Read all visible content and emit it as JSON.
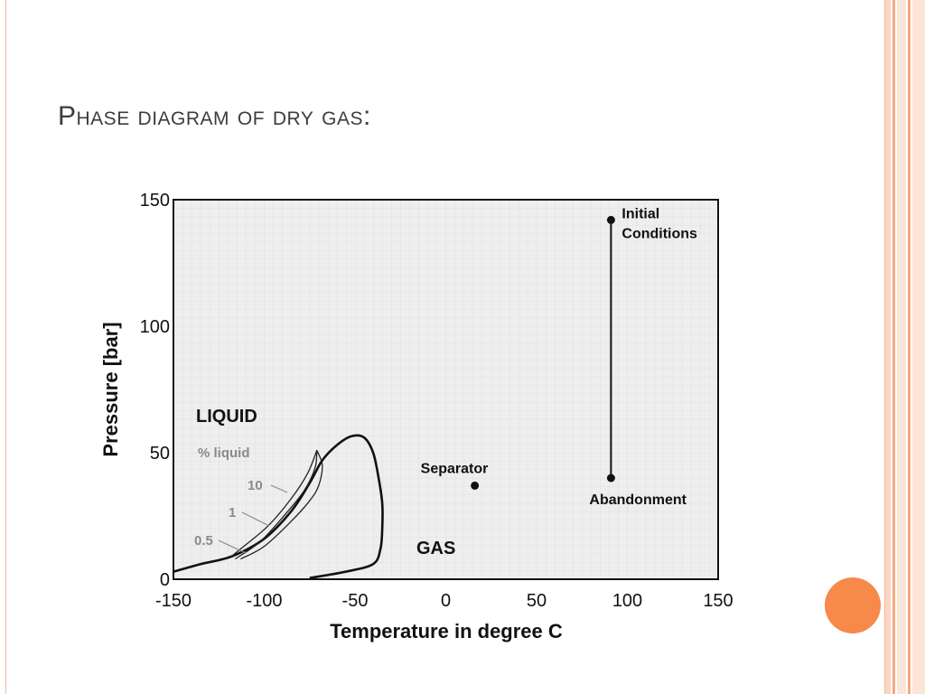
{
  "slide": {
    "title": "Phase diagram of dry gas:",
    "accent_color": "#f7894a"
  },
  "chart_data": {
    "type": "line",
    "title": "",
    "xlabel": "Temperature in degree C",
    "ylabel": "Pressure [bar]",
    "xlim": [
      -150,
      150
    ],
    "ylim": [
      0,
      150
    ],
    "xticks": [
      "-150",
      "-100",
      "-50",
      "0",
      "50",
      "100",
      "150"
    ],
    "yticks": [
      "0",
      "50",
      "100",
      "150"
    ],
    "grid": true,
    "region_labels": {
      "liquid": "LIQUID",
      "gas": "GAS",
      "percent_liquid": "% liquid"
    },
    "quality_line_labels": [
      "10",
      "1",
      "0.5"
    ],
    "phase_envelope": {
      "x": [
        -150,
        -135,
        -118,
        -100,
        -85,
        -75,
        -68,
        -60,
        -52,
        -45,
        -40,
        -37,
        -35,
        -35,
        -36,
        -40,
        -55,
        -75
      ],
      "y": [
        3,
        6,
        9,
        16,
        27,
        38,
        47,
        53,
        56.5,
        56,
        50,
        40,
        30,
        20,
        12,
        6,
        3,
        0.5
      ]
    },
    "quality_lines": [
      {
        "x": [
          -71,
          -68,
          -70,
          -75,
          -85,
          -100,
          -113
        ],
        "y": [
          51,
          45,
          37,
          31,
          23,
          13,
          8
        ]
      },
      {
        "x": [
          -71,
          -72,
          -78,
          -88,
          -102,
          -116
        ],
        "y": [
          51,
          44,
          35,
          26,
          15,
          8
        ]
      },
      {
        "x": [
          -71,
          -76,
          -85,
          -98,
          -113,
          -118
        ],
        "y": [
          51,
          42,
          32,
          21,
          12,
          9
        ]
      }
    ],
    "points": [
      {
        "label": "Separator",
        "x": 16,
        "y": 37
      },
      {
        "label": "Initial Conditions",
        "x": 91,
        "y": 142
      },
      {
        "label": "Abandonment",
        "x": 91,
        "y": 40
      }
    ],
    "depletion_path": {
      "x": [
        91,
        91
      ],
      "y": [
        142,
        40
      ]
    }
  }
}
